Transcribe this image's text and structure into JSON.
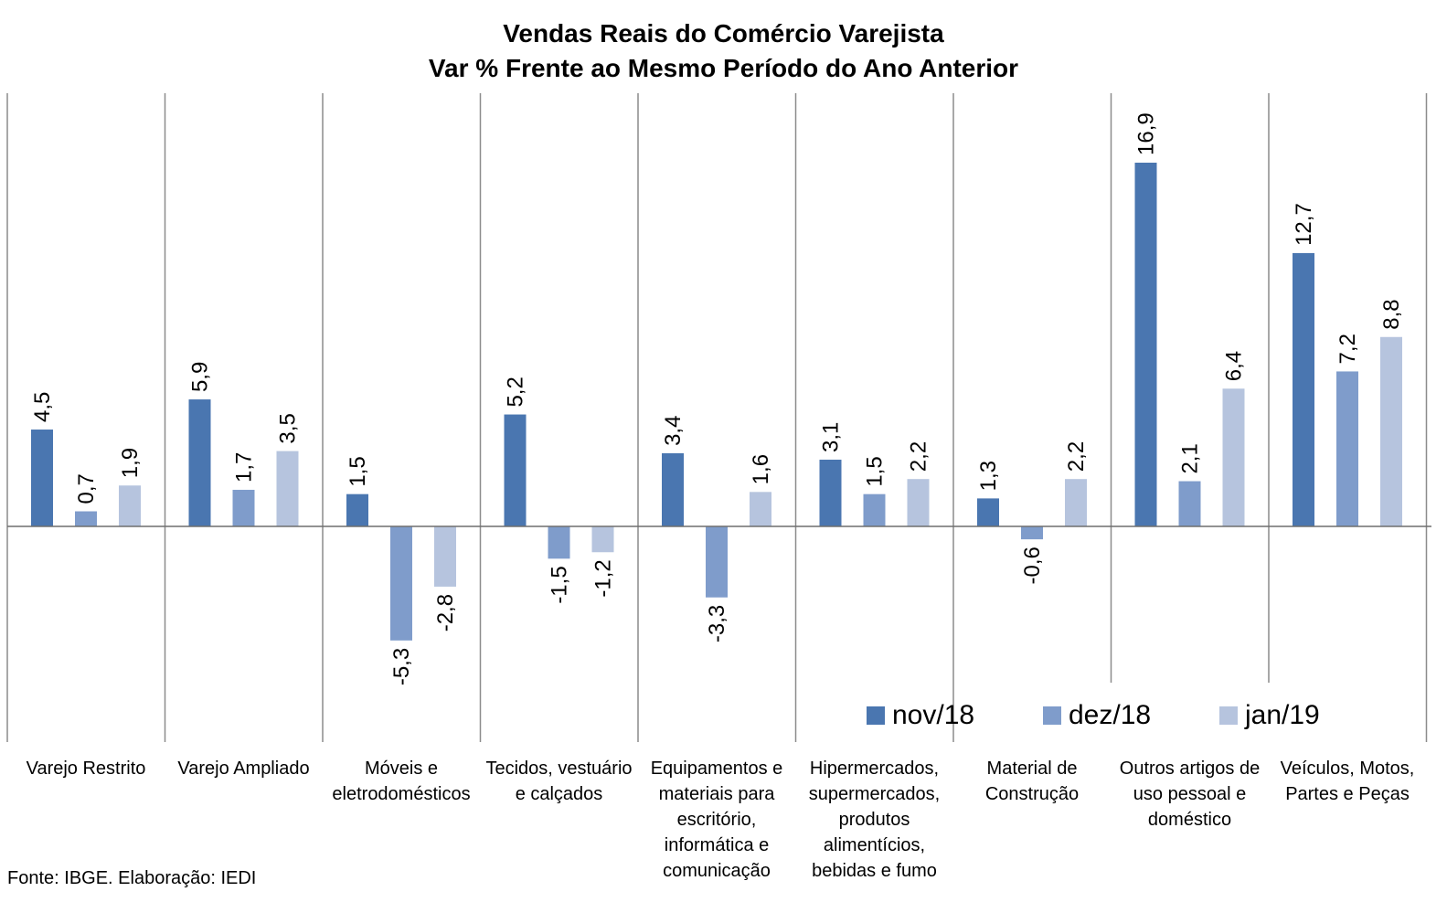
{
  "chart_data": {
    "type": "bar",
    "title": "Vendas Reais do Comércio Varejista",
    "subtitle": "Var % Frente ao Mesmo Período do Ano Anterior",
    "categories": [
      "Varejo Restrito",
      "Varejo Ampliado",
      "Móveis e eletrodomésticos",
      "Tecidos, vestuário e calçados",
      "Equipamentos e materiais para escritório, informática e comunicação",
      "Hipermercados, supermercados, produtos alimentícios, bebidas e fumo",
      "Material de Construção",
      "Outros artigos de uso pessoal e doméstico",
      "Veículos, Motos, Partes e Peças"
    ],
    "category_lines": [
      [
        "Varejo Restrito"
      ],
      [
        "Varejo Ampliado"
      ],
      [
        "Móveis e",
        "eletrodomésticos"
      ],
      [
        "Tecidos, vestuário",
        "e calçados"
      ],
      [
        "Equipamentos e",
        "materiais para",
        "escritório,",
        "informática e",
        "comunicação"
      ],
      [
        "Hipermercados,",
        "supermercados,",
        "produtos",
        "alimentícios,",
        "bebidas e fumo"
      ],
      [
        "Material de",
        "Construção"
      ],
      [
        "Outros artigos de",
        "uso pessoal e",
        "doméstico"
      ],
      [
        "Veículos, Motos,",
        "Partes e Peças"
      ]
    ],
    "series": [
      {
        "name": "nov/18",
        "color": "#4a76b0",
        "values": [
          4.5,
          5.9,
          1.5,
          5.2,
          3.4,
          3.1,
          1.3,
          16.9,
          12.7
        ]
      },
      {
        "name": "dez/18",
        "color": "#7f9ccb",
        "values": [
          0.7,
          1.7,
          -5.3,
          -1.5,
          -3.3,
          1.5,
          -0.6,
          2.1,
          7.2
        ]
      },
      {
        "name": "jan/19",
        "color": "#b6c4de",
        "values": [
          1.9,
          3.5,
          -2.8,
          -1.2,
          1.6,
          2.2,
          2.2,
          6.4,
          8.8
        ]
      }
    ],
    "data_labels": [
      [
        "4,5",
        "5,9",
        "1,5",
        "5,2",
        "3,4",
        "3,1",
        "1,3",
        "16,9",
        "12,7"
      ],
      [
        "0,7",
        "1,7",
        "-5,3",
        "-1,5",
        "-3,3",
        "1,5",
        "-0,6",
        "2,1",
        "7,2"
      ],
      [
        "1,9",
        "3,5",
        "-2,8",
        "-1,2",
        "1,6",
        "2,2",
        "2,2",
        "6,4",
        "8,8"
      ]
    ],
    "legend_position": "bottom-right",
    "grid": false,
    "source": "Fonte: IBGE. Elaboração: IEDI"
  }
}
